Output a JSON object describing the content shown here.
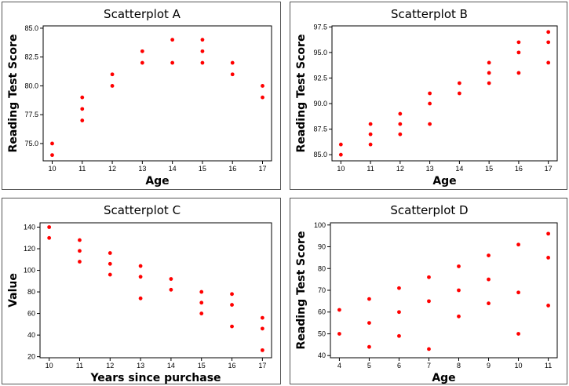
{
  "chart_data": [
    {
      "type": "scatter",
      "title": "Scatterplot A",
      "xlabel": "Age",
      "ylabel": "Reading Test Score",
      "xlim": [
        9.7,
        17.3
      ],
      "ylim": [
        73.5,
        85.2
      ],
      "xticks": [
        10,
        11,
        12,
        13,
        14,
        15,
        16,
        17
      ],
      "yticks": [
        75.0,
        77.5,
        80.0,
        82.5,
        85.0
      ],
      "ytick_labels": [
        "75.0",
        "77.5",
        "80.0",
        "82.5",
        "85.0"
      ],
      "points": [
        [
          10,
          75
        ],
        [
          10,
          74
        ],
        [
          11,
          79
        ],
        [
          11,
          78
        ],
        [
          11,
          77
        ],
        [
          12,
          81
        ],
        [
          12,
          80
        ],
        [
          13,
          83
        ],
        [
          13,
          82
        ],
        [
          14,
          84
        ],
        [
          14,
          82
        ],
        [
          15,
          84
        ],
        [
          15,
          83
        ],
        [
          15,
          82
        ],
        [
          16,
          82
        ],
        [
          16,
          81
        ],
        [
          17,
          80
        ],
        [
          17,
          79
        ]
      ],
      "color": "#ff0000"
    },
    {
      "type": "scatter",
      "title": "Scatterplot B",
      "xlabel": "Age",
      "ylabel": "Reading Test Score",
      "xlim": [
        9.7,
        17.3
      ],
      "ylim": [
        84.4,
        97.6
      ],
      "xticks": [
        10,
        11,
        12,
        13,
        14,
        15,
        16,
        17
      ],
      "yticks": [
        85.0,
        87.5,
        90.0,
        92.5,
        95.0,
        97.5
      ],
      "ytick_labels": [
        "85.0",
        "87.5",
        "90.0",
        "92.5",
        "95.0",
        "97.5"
      ],
      "points": [
        [
          10,
          86
        ],
        [
          10,
          85
        ],
        [
          11,
          88
        ],
        [
          11,
          87
        ],
        [
          11,
          86
        ],
        [
          12,
          89
        ],
        [
          12,
          88
        ],
        [
          12,
          87
        ],
        [
          13,
          91
        ],
        [
          13,
          90
        ],
        [
          13,
          88
        ],
        [
          14,
          92
        ],
        [
          14,
          91
        ],
        [
          15,
          94
        ],
        [
          15,
          93
        ],
        [
          15,
          92
        ],
        [
          16,
          96
        ],
        [
          16,
          95
        ],
        [
          16,
          93
        ],
        [
          17,
          97
        ],
        [
          17,
          96
        ],
        [
          17,
          94
        ]
      ],
      "color": "#ff0000"
    },
    {
      "type": "scatter",
      "title": "Scatterplot C",
      "xlabel": "Years since purchase",
      "ylabel": "Value",
      "xlim": [
        9.7,
        17.3
      ],
      "ylim": [
        19,
        144
      ],
      "xticks": [
        10,
        11,
        12,
        13,
        14,
        15,
        16,
        17
      ],
      "yticks": [
        20,
        40,
        60,
        80,
        100,
        120,
        140
      ],
      "ytick_labels": [
        "20",
        "40",
        "60",
        "80",
        "100",
        "120",
        "140"
      ],
      "points": [
        [
          10,
          140
        ],
        [
          10,
          130
        ],
        [
          11,
          128
        ],
        [
          11,
          118
        ],
        [
          11,
          108
        ],
        [
          12,
          116
        ],
        [
          12,
          106
        ],
        [
          12,
          96
        ],
        [
          13,
          104
        ],
        [
          13,
          94
        ],
        [
          13,
          74
        ],
        [
          14,
          92
        ],
        [
          14,
          82
        ],
        [
          15,
          80
        ],
        [
          15,
          70
        ],
        [
          15,
          60
        ],
        [
          16,
          78
        ],
        [
          16,
          68
        ],
        [
          16,
          48
        ],
        [
          17,
          56
        ],
        [
          17,
          46
        ],
        [
          17,
          26
        ]
      ],
      "color": "#ff0000"
    },
    {
      "type": "scatter",
      "title": "Scatterplot D",
      "xlabel": "Age",
      "ylabel": "Reading Test Score",
      "xlim": [
        3.7,
        11.3
      ],
      "ylim": [
        39,
        101
      ],
      "xticks": [
        4,
        5,
        6,
        7,
        8,
        9,
        10,
        11
      ],
      "yticks": [
        40,
        50,
        60,
        70,
        80,
        90,
        100
      ],
      "ytick_labels": [
        "40",
        "50",
        "60",
        "70",
        "80",
        "90",
        "100"
      ],
      "points": [
        [
          4,
          61
        ],
        [
          4,
          50
        ],
        [
          5,
          66
        ],
        [
          5,
          55
        ],
        [
          5,
          44
        ],
        [
          6,
          71
        ],
        [
          6,
          60
        ],
        [
          6,
          49
        ],
        [
          7,
          76
        ],
        [
          7,
          65
        ],
        [
          7,
          43
        ],
        [
          8,
          81
        ],
        [
          8,
          70
        ],
        [
          8,
          58
        ],
        [
          9,
          86
        ],
        [
          9,
          75
        ],
        [
          9,
          64
        ],
        [
          10,
          91
        ],
        [
          10,
          69
        ],
        [
          10,
          50
        ],
        [
          11,
          96
        ],
        [
          11,
          85
        ],
        [
          11,
          63
        ]
      ],
      "color": "#ff0000"
    }
  ]
}
